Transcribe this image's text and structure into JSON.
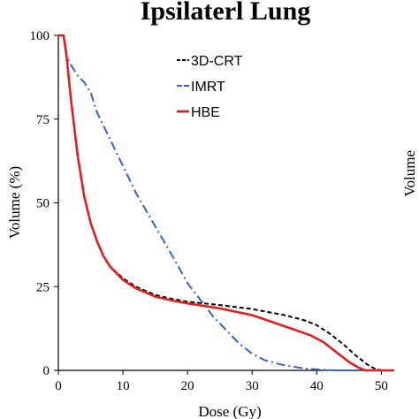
{
  "chart_data": {
    "type": "line",
    "title": "Ipsilaterl Lung",
    "xlabel": "Dose (Gy)",
    "ylabel": "Volume (%)",
    "right_ylabel": "Volume",
    "xlim": [
      0,
      52
    ],
    "ylim": [
      0,
      100
    ],
    "xticks": [
      0,
      10,
      20,
      30,
      40,
      50
    ],
    "yticks": [
      0,
      25,
      50,
      75,
      100
    ],
    "grid": false,
    "legend_position": "top-right",
    "series": [
      {
        "name": "3D-CRT",
        "color": "#000000",
        "style": "dashed",
        "points": [
          [
            0,
            100
          ],
          [
            0.8,
            100
          ],
          [
            1.2,
            95
          ],
          [
            2,
            80
          ],
          [
            3,
            64
          ],
          [
            4,
            52
          ],
          [
            5,
            44
          ],
          [
            6,
            38.5
          ],
          [
            7,
            34
          ],
          [
            8,
            31
          ],
          [
            10,
            27.5
          ],
          [
            12,
            25
          ],
          [
            15,
            22.5
          ],
          [
            18,
            21.2
          ],
          [
            20,
            20.5
          ],
          [
            25,
            19.5
          ],
          [
            30,
            18.3
          ],
          [
            35,
            16.5
          ],
          [
            38,
            15
          ],
          [
            40,
            13.5
          ],
          [
            42,
            11
          ],
          [
            44,
            8
          ],
          [
            46,
            4.5
          ],
          [
            48,
            1.5
          ],
          [
            49,
            0.5
          ],
          [
            50,
            0
          ],
          [
            52,
            0
          ]
        ]
      },
      {
        "name": "IMRT",
        "color": "#3a5fcd",
        "style": "dashdot",
        "points": [
          [
            0,
            100
          ],
          [
            0.8,
            100
          ],
          [
            1.2,
            94
          ],
          [
            2,
            91
          ],
          [
            3,
            88
          ],
          [
            4,
            86
          ],
          [
            5,
            83
          ],
          [
            6,
            77
          ],
          [
            8,
            69
          ],
          [
            10,
            61
          ],
          [
            12,
            53
          ],
          [
            15,
            43
          ],
          [
            18,
            33
          ],
          [
            20,
            26
          ],
          [
            22,
            21
          ],
          [
            24,
            16
          ],
          [
            26,
            12
          ],
          [
            28,
            8
          ],
          [
            30,
            5
          ],
          [
            32,
            3
          ],
          [
            35,
            1.5
          ],
          [
            38,
            0.6
          ],
          [
            40,
            0.3
          ],
          [
            43,
            0
          ],
          [
            52,
            0
          ]
        ]
      },
      {
        "name": "HBE",
        "color": "#e02020",
        "style": "solid",
        "points": [
          [
            0,
            100
          ],
          [
            0.8,
            100
          ],
          [
            1.2,
            95
          ],
          [
            2,
            80
          ],
          [
            3,
            64
          ],
          [
            4,
            52
          ],
          [
            5,
            44
          ],
          [
            6,
            38.5
          ],
          [
            7,
            34
          ],
          [
            8,
            31
          ],
          [
            10,
            27
          ],
          [
            12,
            24.5
          ],
          [
            15,
            22
          ],
          [
            18,
            20.7
          ],
          [
            20,
            20
          ],
          [
            25,
            18.5
          ],
          [
            30,
            16.5
          ],
          [
            33,
            14.5
          ],
          [
            36,
            12.5
          ],
          [
            39,
            10.5
          ],
          [
            41,
            8.5
          ],
          [
            43,
            5.5
          ],
          [
            45,
            2.5
          ],
          [
            46.5,
            0.8
          ],
          [
            47.5,
            0
          ],
          [
            52,
            0
          ]
        ]
      }
    ]
  }
}
